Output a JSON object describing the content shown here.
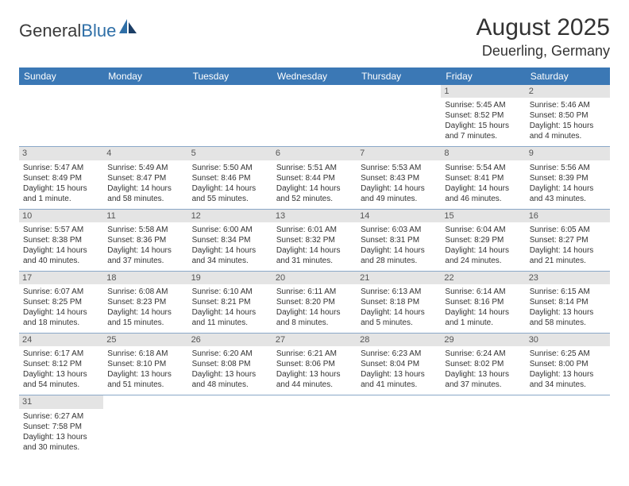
{
  "logo": {
    "text1": "General",
    "text2": "Blue"
  },
  "title": "August 2025",
  "location": "Deuerling, Germany",
  "colors": {
    "header_bg": "#3b78b5",
    "header_text": "#ffffff",
    "daynum_bg": "#e4e4e4",
    "border": "#8aa8c8",
    "logo_blue": "#2f6fa7",
    "logo_navy": "#1c3e66"
  },
  "weekdays": [
    "Sunday",
    "Monday",
    "Tuesday",
    "Wednesday",
    "Thursday",
    "Friday",
    "Saturday"
  ],
  "weeks": [
    [
      {
        "day": "",
        "lines": [
          "",
          "",
          "",
          ""
        ]
      },
      {
        "day": "",
        "lines": [
          "",
          "",
          "",
          ""
        ]
      },
      {
        "day": "",
        "lines": [
          "",
          "",
          "",
          ""
        ]
      },
      {
        "day": "",
        "lines": [
          "",
          "",
          "",
          ""
        ]
      },
      {
        "day": "",
        "lines": [
          "",
          "",
          "",
          ""
        ]
      },
      {
        "day": "1",
        "lines": [
          "Sunrise: 5:45 AM",
          "Sunset: 8:52 PM",
          "Daylight: 15 hours",
          "and 7 minutes."
        ]
      },
      {
        "day": "2",
        "lines": [
          "Sunrise: 5:46 AM",
          "Sunset: 8:50 PM",
          "Daylight: 15 hours",
          "and 4 minutes."
        ]
      }
    ],
    [
      {
        "day": "3",
        "lines": [
          "Sunrise: 5:47 AM",
          "Sunset: 8:49 PM",
          "Daylight: 15 hours",
          "and 1 minute."
        ]
      },
      {
        "day": "4",
        "lines": [
          "Sunrise: 5:49 AM",
          "Sunset: 8:47 PM",
          "Daylight: 14 hours",
          "and 58 minutes."
        ]
      },
      {
        "day": "5",
        "lines": [
          "Sunrise: 5:50 AM",
          "Sunset: 8:46 PM",
          "Daylight: 14 hours",
          "and 55 minutes."
        ]
      },
      {
        "day": "6",
        "lines": [
          "Sunrise: 5:51 AM",
          "Sunset: 8:44 PM",
          "Daylight: 14 hours",
          "and 52 minutes."
        ]
      },
      {
        "day": "7",
        "lines": [
          "Sunrise: 5:53 AM",
          "Sunset: 8:43 PM",
          "Daylight: 14 hours",
          "and 49 minutes."
        ]
      },
      {
        "day": "8",
        "lines": [
          "Sunrise: 5:54 AM",
          "Sunset: 8:41 PM",
          "Daylight: 14 hours",
          "and 46 minutes."
        ]
      },
      {
        "day": "9",
        "lines": [
          "Sunrise: 5:56 AM",
          "Sunset: 8:39 PM",
          "Daylight: 14 hours",
          "and 43 minutes."
        ]
      }
    ],
    [
      {
        "day": "10",
        "lines": [
          "Sunrise: 5:57 AM",
          "Sunset: 8:38 PM",
          "Daylight: 14 hours",
          "and 40 minutes."
        ]
      },
      {
        "day": "11",
        "lines": [
          "Sunrise: 5:58 AM",
          "Sunset: 8:36 PM",
          "Daylight: 14 hours",
          "and 37 minutes."
        ]
      },
      {
        "day": "12",
        "lines": [
          "Sunrise: 6:00 AM",
          "Sunset: 8:34 PM",
          "Daylight: 14 hours",
          "and 34 minutes."
        ]
      },
      {
        "day": "13",
        "lines": [
          "Sunrise: 6:01 AM",
          "Sunset: 8:32 PM",
          "Daylight: 14 hours",
          "and 31 minutes."
        ]
      },
      {
        "day": "14",
        "lines": [
          "Sunrise: 6:03 AM",
          "Sunset: 8:31 PM",
          "Daylight: 14 hours",
          "and 28 minutes."
        ]
      },
      {
        "day": "15",
        "lines": [
          "Sunrise: 6:04 AM",
          "Sunset: 8:29 PM",
          "Daylight: 14 hours",
          "and 24 minutes."
        ]
      },
      {
        "day": "16",
        "lines": [
          "Sunrise: 6:05 AM",
          "Sunset: 8:27 PM",
          "Daylight: 14 hours",
          "and 21 minutes."
        ]
      }
    ],
    [
      {
        "day": "17",
        "lines": [
          "Sunrise: 6:07 AM",
          "Sunset: 8:25 PM",
          "Daylight: 14 hours",
          "and 18 minutes."
        ]
      },
      {
        "day": "18",
        "lines": [
          "Sunrise: 6:08 AM",
          "Sunset: 8:23 PM",
          "Daylight: 14 hours",
          "and 15 minutes."
        ]
      },
      {
        "day": "19",
        "lines": [
          "Sunrise: 6:10 AM",
          "Sunset: 8:21 PM",
          "Daylight: 14 hours",
          "and 11 minutes."
        ]
      },
      {
        "day": "20",
        "lines": [
          "Sunrise: 6:11 AM",
          "Sunset: 8:20 PM",
          "Daylight: 14 hours",
          "and 8 minutes."
        ]
      },
      {
        "day": "21",
        "lines": [
          "Sunrise: 6:13 AM",
          "Sunset: 8:18 PM",
          "Daylight: 14 hours",
          "and 5 minutes."
        ]
      },
      {
        "day": "22",
        "lines": [
          "Sunrise: 6:14 AM",
          "Sunset: 8:16 PM",
          "Daylight: 14 hours",
          "and 1 minute."
        ]
      },
      {
        "day": "23",
        "lines": [
          "Sunrise: 6:15 AM",
          "Sunset: 8:14 PM",
          "Daylight: 13 hours",
          "and 58 minutes."
        ]
      }
    ],
    [
      {
        "day": "24",
        "lines": [
          "Sunrise: 6:17 AM",
          "Sunset: 8:12 PM",
          "Daylight: 13 hours",
          "and 54 minutes."
        ]
      },
      {
        "day": "25",
        "lines": [
          "Sunrise: 6:18 AM",
          "Sunset: 8:10 PM",
          "Daylight: 13 hours",
          "and 51 minutes."
        ]
      },
      {
        "day": "26",
        "lines": [
          "Sunrise: 6:20 AM",
          "Sunset: 8:08 PM",
          "Daylight: 13 hours",
          "and 48 minutes."
        ]
      },
      {
        "day": "27",
        "lines": [
          "Sunrise: 6:21 AM",
          "Sunset: 8:06 PM",
          "Daylight: 13 hours",
          "and 44 minutes."
        ]
      },
      {
        "day": "28",
        "lines": [
          "Sunrise: 6:23 AM",
          "Sunset: 8:04 PM",
          "Daylight: 13 hours",
          "and 41 minutes."
        ]
      },
      {
        "day": "29",
        "lines": [
          "Sunrise: 6:24 AM",
          "Sunset: 8:02 PM",
          "Daylight: 13 hours",
          "and 37 minutes."
        ]
      },
      {
        "day": "30",
        "lines": [
          "Sunrise: 6:25 AM",
          "Sunset: 8:00 PM",
          "Daylight: 13 hours",
          "and 34 minutes."
        ]
      }
    ],
    [
      {
        "day": "31",
        "lines": [
          "Sunrise: 6:27 AM",
          "Sunset: 7:58 PM",
          "Daylight: 13 hours",
          "and 30 minutes."
        ]
      },
      {
        "day": "",
        "lines": [
          "",
          "",
          "",
          ""
        ]
      },
      {
        "day": "",
        "lines": [
          "",
          "",
          "",
          ""
        ]
      },
      {
        "day": "",
        "lines": [
          "",
          "",
          "",
          ""
        ]
      },
      {
        "day": "",
        "lines": [
          "",
          "",
          "",
          ""
        ]
      },
      {
        "day": "",
        "lines": [
          "",
          "",
          "",
          ""
        ]
      },
      {
        "day": "",
        "lines": [
          "",
          "",
          "",
          ""
        ]
      }
    ]
  ]
}
